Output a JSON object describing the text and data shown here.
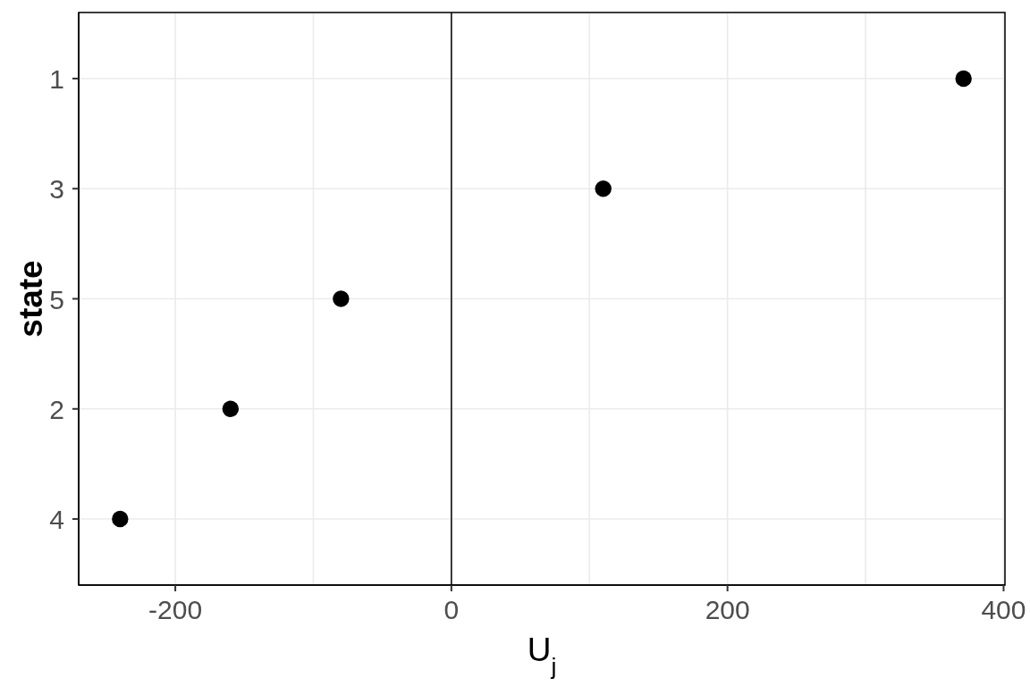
{
  "chart_data": {
    "type": "scatter",
    "orientation": "horizontal",
    "xlabel": "U$_{j}$",
    "ylabel": "state",
    "categories": [
      "1",
      "3",
      "5",
      "2",
      "4"
    ],
    "values": [
      371,
      110,
      -80,
      -160,
      -240
    ],
    "color": "#000000",
    "marker": "circle",
    "xlim": [
      -270,
      401
    ],
    "xticks": [
      -200,
      {
        "value": -100,
        "label": null
      },
      0,
      {
        "value": 100,
        "label": null
      },
      200,
      {
        "value": 300,
        "label": null
      },
      400
    ],
    "grid": true,
    "ref_lines": [
      {
        "axis": "x",
        "value": 0,
        "color": "#000000"
      }
    ]
  }
}
